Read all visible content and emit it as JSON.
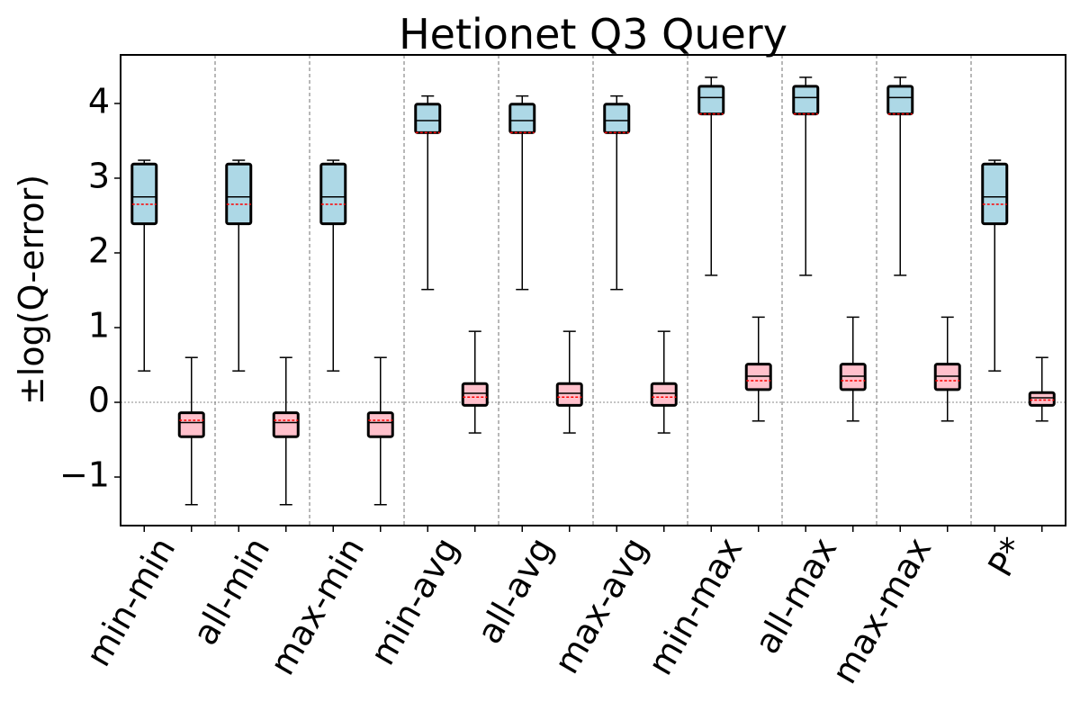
{
  "chart_data": {
    "type": "box",
    "title": "Hetionet Q3 Query",
    "xlabel": "",
    "ylabel": "±log(Q-error)",
    "ylim": [
      -1.65,
      4.65
    ],
    "yticks": [
      -1,
      0,
      1,
      2,
      3,
      4
    ],
    "ytick_labels": [
      "−1",
      "0",
      "1",
      "2",
      "3",
      "4"
    ],
    "categories": [
      "min-min",
      "all-min",
      "max-min",
      "min-avg",
      "all-avg",
      "max-avg",
      "min-max",
      "all-max",
      "max-max",
      "P*"
    ],
    "series_colors": {
      "upper": "#add8e6",
      "lower": "#ffc0cb"
    },
    "median_color": "#000000",
    "mean_color": "#ff0000",
    "zero_line": true,
    "group_separators": true,
    "groups": [
      {
        "category": "min-min",
        "upper": {
          "whisker_low": 0.42,
          "q1": 2.39,
          "median": 2.75,
          "mean": 2.65,
          "q3": 3.19,
          "whisker_high": 3.24
        },
        "lower": {
          "whisker_low": -1.37,
          "q1": -0.46,
          "median": -0.27,
          "mean": -0.24,
          "q3": -0.14,
          "whisker_high": 0.6
        }
      },
      {
        "category": "all-min",
        "upper": {
          "whisker_low": 0.42,
          "q1": 2.39,
          "median": 2.75,
          "mean": 2.65,
          "q3": 3.19,
          "whisker_high": 3.24
        },
        "lower": {
          "whisker_low": -1.37,
          "q1": -0.46,
          "median": -0.27,
          "mean": -0.24,
          "q3": -0.14,
          "whisker_high": 0.6
        }
      },
      {
        "category": "max-min",
        "upper": {
          "whisker_low": 0.42,
          "q1": 2.39,
          "median": 2.75,
          "mean": 2.65,
          "q3": 3.19,
          "whisker_high": 3.24
        },
        "lower": {
          "whisker_low": -1.37,
          "q1": -0.46,
          "median": -0.27,
          "mean": -0.24,
          "q3": -0.14,
          "whisker_high": 0.6
        }
      },
      {
        "category": "min-avg",
        "upper": {
          "whisker_low": 1.51,
          "q1": 3.61,
          "median": 3.77,
          "mean": 3.61,
          "q3": 3.99,
          "whisker_high": 4.1
        },
        "lower": {
          "whisker_low": -0.41,
          "q1": -0.04,
          "median": 0.12,
          "mean": 0.07,
          "q3": 0.25,
          "whisker_high": 0.95
        }
      },
      {
        "category": "all-avg",
        "upper": {
          "whisker_low": 1.51,
          "q1": 3.61,
          "median": 3.77,
          "mean": 3.61,
          "q3": 3.99,
          "whisker_high": 4.1
        },
        "lower": {
          "whisker_low": -0.41,
          "q1": -0.04,
          "median": 0.12,
          "mean": 0.07,
          "q3": 0.25,
          "whisker_high": 0.95
        }
      },
      {
        "category": "max-avg",
        "upper": {
          "whisker_low": 1.51,
          "q1": 3.61,
          "median": 3.77,
          "mean": 3.61,
          "q3": 3.99,
          "whisker_high": 4.1
        },
        "lower": {
          "whisker_low": -0.41,
          "q1": -0.04,
          "median": 0.12,
          "mean": 0.07,
          "q3": 0.25,
          "whisker_high": 0.95
        }
      },
      {
        "category": "min-max",
        "upper": {
          "whisker_low": 1.7,
          "q1": 3.86,
          "median": 4.08,
          "mean": 3.86,
          "q3": 4.23,
          "whisker_high": 4.35
        },
        "lower": {
          "whisker_low": -0.25,
          "q1": 0.17,
          "median": 0.35,
          "mean": 0.29,
          "q3": 0.51,
          "whisker_high": 1.14
        }
      },
      {
        "category": "all-max",
        "upper": {
          "whisker_low": 1.7,
          "q1": 3.86,
          "median": 4.08,
          "mean": 3.86,
          "q3": 4.23,
          "whisker_high": 4.35
        },
        "lower": {
          "whisker_low": -0.25,
          "q1": 0.17,
          "median": 0.35,
          "mean": 0.29,
          "q3": 0.51,
          "whisker_high": 1.14
        }
      },
      {
        "category": "max-max",
        "upper": {
          "whisker_low": 1.7,
          "q1": 3.86,
          "median": 4.08,
          "mean": 3.86,
          "q3": 4.23,
          "whisker_high": 4.35
        },
        "lower": {
          "whisker_low": -0.25,
          "q1": 0.17,
          "median": 0.35,
          "mean": 0.29,
          "q3": 0.51,
          "whisker_high": 1.14
        }
      },
      {
        "category": "P*",
        "upper": {
          "whisker_low": 0.42,
          "q1": 2.39,
          "median": 2.75,
          "mean": 2.65,
          "q3": 3.19,
          "whisker_high": 3.24
        },
        "lower": {
          "whisker_low": -0.25,
          "q1": -0.04,
          "median": 0.06,
          "mean": 0.03,
          "q3": 0.13,
          "whisker_high": 0.6
        }
      }
    ]
  }
}
